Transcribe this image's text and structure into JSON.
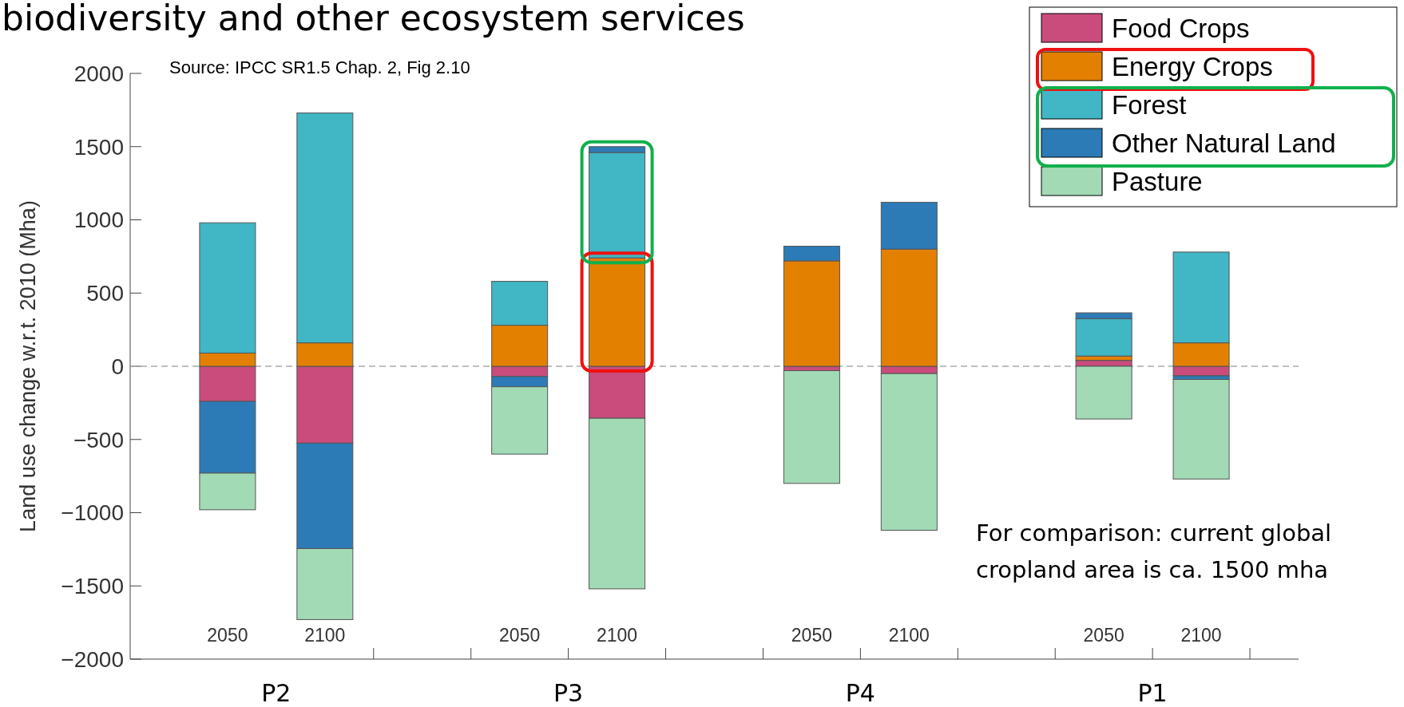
{
  "chart_data": {
    "type": "bar",
    "stacked": true,
    "title": "biodiversity and other ecosystem services",
    "ylabel": "Land use change w.r.t. 2010 (Mha)",
    "categories": [
      "2050",
      "2100",
      "2050",
      "2100",
      "2050",
      "2100",
      "2050",
      "2100"
    ],
    "series": [
      {
        "name": "Food Crops",
        "color": "#c94c7c",
        "values": [
          -240,
          -525,
          -70,
          -355,
          -30,
          -50,
          40,
          -65
        ]
      },
      {
        "name": "Energy Crops",
        "color": "#e38000",
        "values": [
          90,
          160,
          280,
          740,
          720,
          800,
          30,
          160
        ]
      },
      {
        "name": "Forest",
        "color": "#41b6c4",
        "values": [
          890,
          1570,
          300,
          720,
          null,
          null,
          255,
          620
        ]
      },
      {
        "name": "Other Natural Land",
        "color": "#2c7bb6",
        "values": [
          -490,
          -720,
          -70,
          40,
          100,
          320,
          40,
          -25
        ]
      },
      {
        "name": "Pasture",
        "color": "#a1dab4",
        "values": [
          -250,
          -485,
          -460,
          -1165,
          -770,
          -1070,
          -360,
          -680
        ]
      }
    ],
    "ylim": [
      -2000,
      2000
    ],
    "yticks": [
      -2000,
      -1500,
      -1000,
      -500,
      0,
      500,
      1000,
      1500,
      2000
    ],
    "ref_lines": [
      {
        "axis": "y",
        "value": 0,
        "label": null,
        "color": "#aaaaaa",
        "line_style": "dashed"
      }
    ],
    "legend": "top right",
    "annotations": [
      "Source: IPCC SR1.5 Chap. 2, Fig 2.10",
      "P2",
      "P3",
      "P4",
      "P1",
      "For comparison: current global cropland area is ca. 1500 mha"
    ]
  }
}
